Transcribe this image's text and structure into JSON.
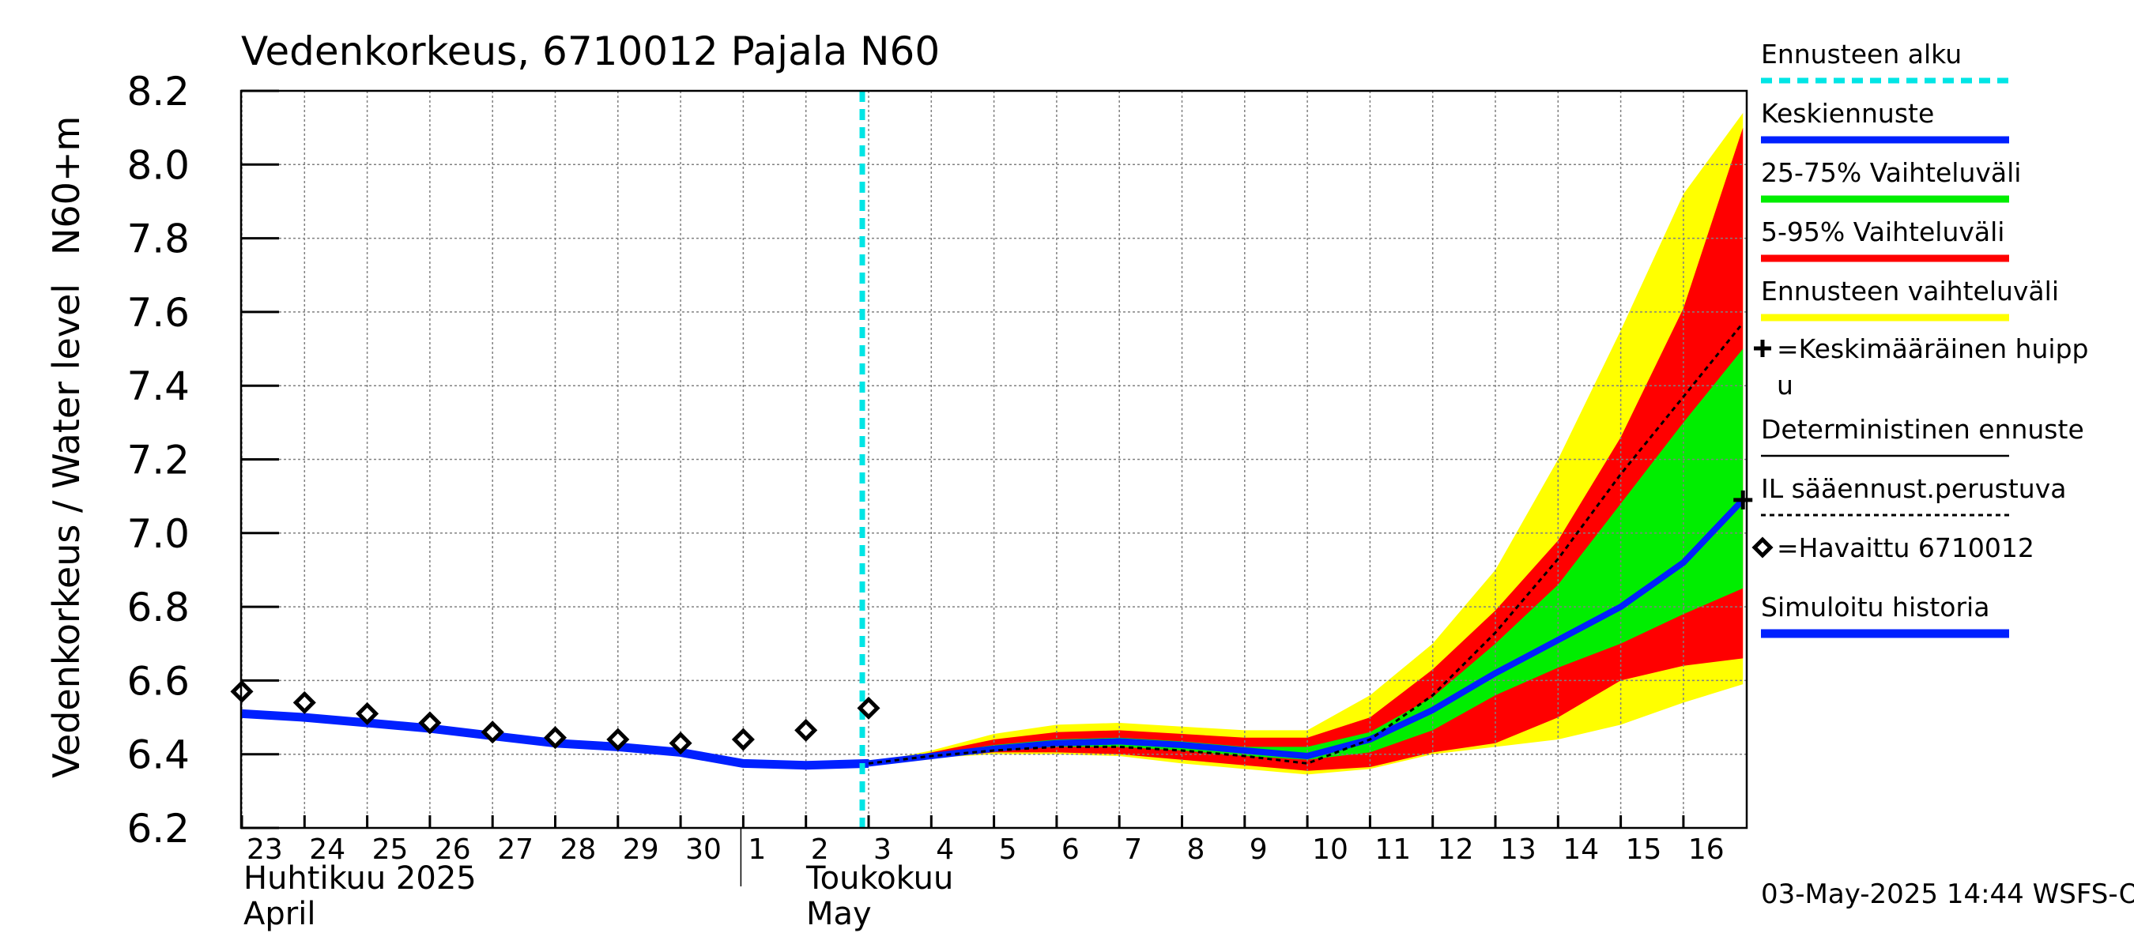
{
  "chart_data": {
    "type": "area",
    "title": "Vedenkorkeus, 6710012 Pajala N60",
    "ylabel_1": "N60+m",
    "ylabel_2": "Vedenkorkeus / Water level",
    "ylim": [
      6.2,
      8.2
    ],
    "yticks": [
      "6.2",
      "6.4",
      "6.6",
      "6.8",
      "7.0",
      "7.2",
      "7.4",
      "7.6",
      "7.8",
      "8.0",
      "8.2"
    ],
    "x_day_labels": [
      "23",
      "24",
      "25",
      "26",
      "27",
      "28",
      "29",
      "30",
      "1",
      "2",
      "3",
      "4",
      "5",
      "6",
      "7",
      "8",
      "9",
      "10",
      "11",
      "12",
      "13",
      "14",
      "15",
      "16"
    ],
    "month_labels": {
      "april_fi": "Huhtikuu  2025",
      "april_en": "April",
      "may_fi": "Toukokuu",
      "may_en": "May"
    },
    "timestamp": "03-May-2025 14:44 WSFS-O",
    "grid": true,
    "forecast_start_day_index": 10,
    "observed": {
      "name": "=Havaittu 6710012",
      "x": [
        0,
        1,
        2,
        3,
        4,
        5,
        6,
        7,
        8,
        9,
        10
      ],
      "y": [
        6.57,
        6.54,
        6.51,
        6.485,
        6.46,
        6.445,
        6.44,
        6.43,
        6.44,
        6.465,
        6.525
      ]
    },
    "simulated_history": {
      "name": "Simuloitu historia",
      "x": [
        0,
        1,
        2,
        3,
        4,
        5,
        6,
        7,
        8,
        9,
        10
      ],
      "y": [
        6.51,
        6.5,
        6.485,
        6.47,
        6.45,
        6.43,
        6.42,
        6.405,
        6.375,
        6.37,
        6.375
      ]
    },
    "forecast_x": [
      10,
      11,
      12,
      13,
      14,
      15,
      16,
      17,
      18,
      19,
      20,
      21,
      22,
      23,
      23.95
    ],
    "band_full": {
      "name": "Ennusteen vaihteluväli",
      "upper": [
        6.375,
        6.41,
        6.455,
        6.48,
        6.485,
        6.475,
        6.465,
        6.465,
        6.56,
        6.7,
        6.9,
        7.2,
        7.55,
        7.92,
        8.14
      ],
      "lower": [
        6.375,
        6.39,
        6.4,
        6.4,
        6.395,
        6.375,
        6.36,
        6.345,
        6.36,
        6.4,
        6.42,
        6.44,
        6.48,
        6.54,
        6.59
      ]
    },
    "band_5_95": {
      "name": "5-95% Vaihteluväli",
      "upper": [
        6.375,
        6.405,
        6.44,
        6.46,
        6.465,
        6.455,
        6.445,
        6.445,
        6.5,
        6.63,
        6.79,
        6.98,
        7.26,
        7.61,
        8.1
      ],
      "lower": [
        6.375,
        6.39,
        6.405,
        6.405,
        6.4,
        6.385,
        6.37,
        6.355,
        6.365,
        6.405,
        6.43,
        6.5,
        6.6,
        6.64,
        6.66
      ]
    },
    "band_25_75": {
      "name": "25-75% Vaihteluväli",
      "upper": [
        6.375,
        6.4,
        6.425,
        6.44,
        6.445,
        6.435,
        6.42,
        6.42,
        6.46,
        6.555,
        6.7,
        6.86,
        7.08,
        7.3,
        7.5
      ],
      "lower": [
        6.375,
        6.395,
        6.41,
        6.42,
        6.42,
        6.41,
        6.395,
        6.385,
        6.405,
        6.465,
        6.56,
        6.635,
        6.7,
        6.78,
        6.85
      ]
    },
    "median": {
      "name": "Keskiennuste",
      "y": [
        6.375,
        6.395,
        6.415,
        6.43,
        6.435,
        6.425,
        6.41,
        6.395,
        6.44,
        6.52,
        6.62,
        6.71,
        6.8,
        6.92,
        7.09
      ]
    },
    "deterministic": {
      "name": "IL sääennust.perustuva",
      "y": [
        6.375,
        6.395,
        6.41,
        6.42,
        6.42,
        6.41,
        6.395,
        6.375,
        6.44,
        6.56,
        6.73,
        6.93,
        7.16,
        7.37,
        7.57
      ]
    },
    "mean_peak": {
      "name": "=Keskimääräinen huippu",
      "x": 23.95,
      "y": 7.09
    },
    "legend": [
      {
        "label": "Ennusteen alku",
        "kind": "dashed",
        "color": "#00e5e5"
      },
      {
        "label": "Keskiennuste",
        "kind": "line",
        "color": "#0020ff"
      },
      {
        "label": "25-75% Vaihteluväli",
        "kind": "line",
        "color": "#00ee00"
      },
      {
        "label": "5-95% Vaihteluväli",
        "kind": "line",
        "color": "#ff0000"
      },
      {
        "label": "Ennusteen vaihteluväli",
        "kind": "line",
        "color": "#ffff00"
      },
      {
        "label": "=Keskimääräinen huipp",
        "label2": "u",
        "kind": "cross",
        "color": "#000000"
      },
      {
        "label": "Deterministinen ennuste",
        "kind": "line-thin",
        "color": "#000000"
      },
      {
        "label": "IL sääennust.perustuva",
        "kind": "dotted",
        "color": "#000000"
      },
      {
        "label": "=Havaittu 6710012",
        "kind": "diamond",
        "color": "#000000"
      },
      {
        "label": "Simuloitu historia",
        "kind": "line-thick",
        "color": "#0020ff"
      }
    ],
    "colors": {
      "yellow": "#ffff00",
      "red": "#ff0000",
      "green": "#00ee00",
      "blue": "#0020ff",
      "cyan": "#00e5e5",
      "grid": "#808080"
    }
  }
}
